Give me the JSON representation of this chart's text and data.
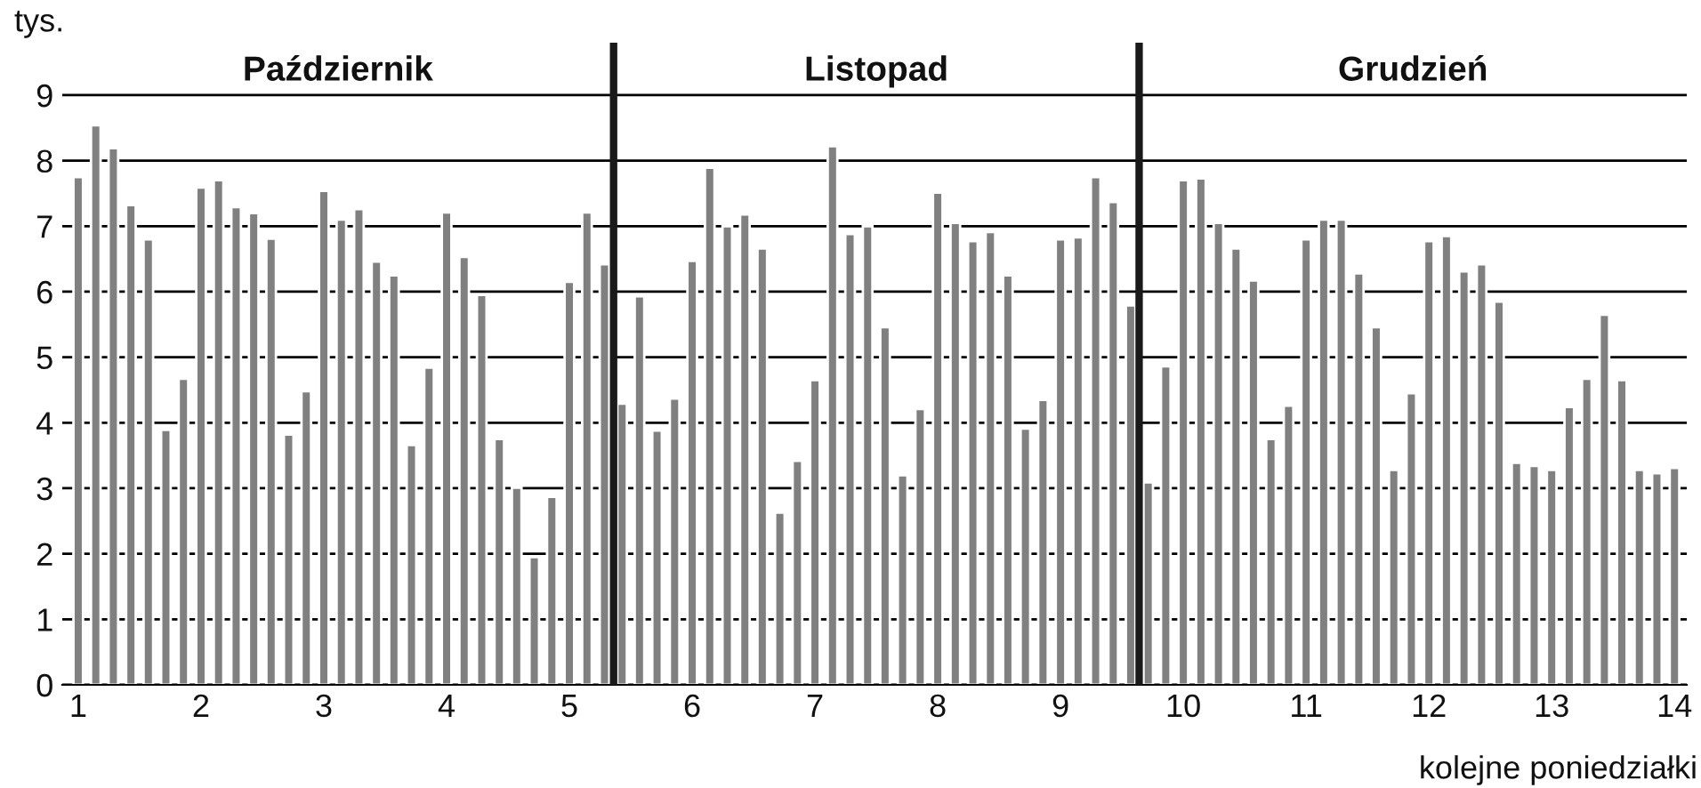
{
  "chart_data": {
    "type": "bar",
    "ylabel": "tys.",
    "xlabel": "kolejne poniedziałki",
    "annotations": [
      "Październik",
      "Listopad",
      "Grudzień"
    ],
    "x": [
      1,
      1.143,
      1.286,
      1.429,
      1.571,
      1.714,
      1.857,
      2,
      2.143,
      2.286,
      2.429,
      2.571,
      2.714,
      2.857,
      3,
      3.143,
      3.286,
      3.429,
      3.571,
      3.714,
      3.857,
      4,
      4.143,
      4.286,
      4.429,
      4.571,
      4.714,
      4.857,
      5,
      5.143,
      5.286,
      5.429,
      5.571,
      5.714,
      5.857,
      6,
      6.143,
      6.286,
      6.429,
      6.571,
      6.714,
      6.857,
      7,
      7.143,
      7.286,
      7.429,
      7.571,
      7.714,
      7.857,
      8,
      8.143,
      8.286,
      8.429,
      8.571,
      8.714,
      8.857,
      9,
      9.143,
      9.286,
      9.429,
      9.571,
      9.714,
      9.857,
      10,
      10.143,
      10.286,
      10.429,
      10.571,
      10.714,
      10.857,
      11,
      11.143,
      11.286,
      11.429,
      11.571,
      11.714,
      11.857,
      12,
      12.143,
      12.286,
      12.429,
      12.571,
      12.714,
      12.857,
      13,
      13.143,
      13.286,
      13.429,
      13.571,
      13.714,
      13.857,
      14
    ],
    "series": [
      {
        "color": "#808080",
        "values": [
          7.75,
          8.54,
          8.19,
          7.32,
          6.8,
          3.89,
          4.67,
          7.59,
          7.7,
          7.29,
          7.2,
          6.81,
          3.82,
          4.48,
          7.54,
          7.1,
          7.26,
          6.46,
          6.25,
          3.66,
          4.84,
          7.21,
          6.53,
          5.95,
          3.75,
          3.01,
          1.95,
          2.87,
          6.15,
          7.21,
          6.42,
          4.29,
          5.93,
          3.88,
          4.37,
          6.47,
          7.89,
          7.0,
          7.18,
          6.66,
          2.63,
          3.42,
          4.65,
          8.22,
          6.88,
          7.0,
          5.46,
          3.2,
          4.21,
          7.51,
          7.05,
          6.77,
          6.91,
          6.25,
          3.91,
          4.35,
          6.8,
          6.83,
          7.75,
          7.37,
          5.79,
          3.09,
          4.86,
          7.7,
          7.73,
          7.05,
          6.66,
          6.17,
          3.75,
          4.26,
          6.8,
          7.1,
          7.1,
          6.28,
          5.46,
          3.28,
          4.45,
          6.77,
          6.85,
          6.31,
          6.42,
          5.85,
          3.39,
          3.34,
          3.28,
          4.24,
          4.67,
          5.65,
          4.65,
          3.28,
          3.23,
          3.31
        ]
      }
    ],
    "ref_lines": [
      {
        "axis": "x",
        "value": 5.36,
        "color": "#1a1a1a",
        "line_style": "solid"
      },
      {
        "axis": "x",
        "value": 9.64,
        "color": "#1a1a1a",
        "line_style": "solid"
      }
    ],
    "xlim": [
      0.87,
      14.1
    ],
    "xticks": [
      1,
      2,
      3,
      4,
      5,
      6,
      7,
      8,
      9,
      10,
      11,
      12,
      13,
      14
    ],
    "ylim": [
      0,
      9.8
    ],
    "yticks": [
      0,
      1,
      2,
      3,
      4,
      5,
      6,
      7,
      8,
      9
    ],
    "grid": "y",
    "legend": false
  }
}
